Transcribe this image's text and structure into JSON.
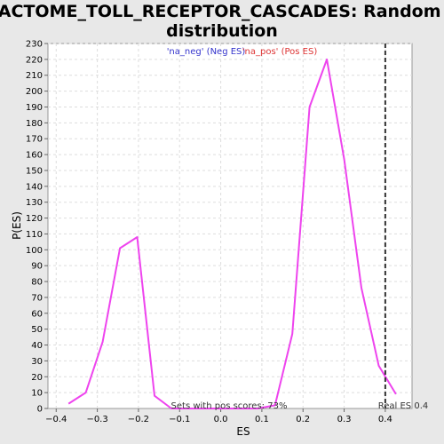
{
  "chart_data": {
    "type": "line",
    "title_line1": "REACTOME_TOLL_RECEPTOR_CASCADES: Random ES",
    "title_line2": "distribution",
    "xlabel": "ES",
    "ylabel": "P(ES)",
    "xlim": [
      -0.42,
      0.465
    ],
    "ylim": [
      0,
      230
    ],
    "x_ticks": [
      -0.4,
      -0.3,
      -0.2,
      -0.1,
      0.0,
      0.1,
      0.2,
      0.3,
      0.4
    ],
    "x_tick_labels": [
      "−0.4",
      "−0.3",
      "−0.2",
      "−0.1",
      "0.0",
      "0.1",
      "0.2",
      "0.3",
      "0.4"
    ],
    "y_ticks": [
      0,
      10,
      20,
      30,
      40,
      50,
      60,
      70,
      80,
      90,
      100,
      110,
      120,
      130,
      140,
      150,
      160,
      170,
      180,
      190,
      200,
      210,
      220,
      230
    ],
    "grid": true,
    "legend": [
      {
        "label": "'na_neg' (Neg ES)",
        "color": "#3333cc"
      },
      {
        "label": "'na_pos' (Pos ES)",
        "color": "#dd3333"
      }
    ],
    "series": [
      {
        "color": "#ee44ee",
        "x": [
          -0.37,
          -0.328,
          -0.287,
          -0.245,
          -0.203,
          -0.161,
          -0.12,
          -0.078,
          -0.036,
          0.006,
          0.048,
          0.09,
          0.132,
          0.174,
          0.216,
          0.258,
          0.3,
          0.342,
          0.384,
          0.426
        ],
        "y": [
          3,
          10,
          42,
          101,
          108,
          8,
          0,
          0,
          0,
          0,
          0,
          0,
          2,
          47,
          190,
          220,
          157,
          76,
          27,
          9
        ]
      }
    ],
    "real_es": {
      "x": 0.4,
      "label": "Real ES 0.4"
    },
    "annotation": "Sets with pos scores: 73%"
  }
}
